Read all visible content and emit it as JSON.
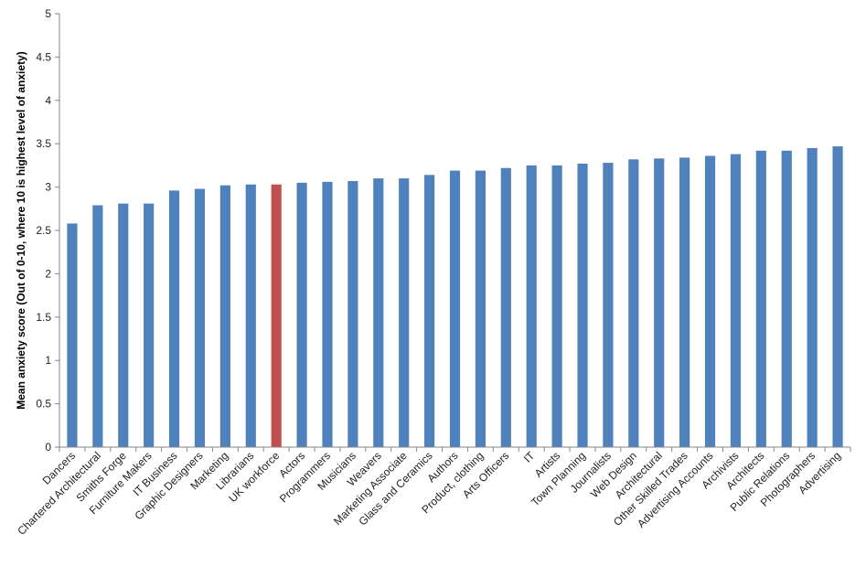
{
  "chart_data": {
    "type": "bar",
    "title": "",
    "xlabel": "",
    "ylabel": "Mean anxiety score  (Out of 0-10, where 10 is  highest level of anxiety)",
    "ylim": [
      0,
      5
    ],
    "yticks": [
      "0",
      "0.5",
      "1",
      "1.5",
      "2",
      "2.5",
      "3",
      "3.5",
      "4",
      "4.5",
      "5"
    ],
    "grid": false,
    "legend": "none",
    "bar_color": "#4f81bd",
    "highlight_color": "#c0504d",
    "highlight_category": "UK workforce",
    "categories": [
      "Dancers",
      "Chartered Architectural",
      "Smiths Forge",
      "Furniture Makers",
      "IT Business",
      "Graphic Designers",
      "Marketing",
      "Librarians",
      "UK workforce",
      "Actors",
      "Programmers",
      "Musicians",
      "Weavers",
      "Marketing Associate",
      "Glass and Ceramics",
      "Authors",
      "Product, clothing",
      "Arts Officers",
      "IT",
      "Artists",
      "Town Planning",
      "Journalists",
      "Web Design",
      "Architectural",
      "Other Skilled Trades",
      "Advertising Accounts",
      "Archivists",
      "Architects",
      "Public Relations",
      "Photographers",
      "Advertising"
    ],
    "values": [
      2.58,
      2.79,
      2.81,
      2.81,
      2.96,
      2.98,
      3.02,
      3.03,
      3.03,
      3.05,
      3.06,
      3.07,
      3.1,
      3.1,
      3.14,
      3.19,
      3.19,
      3.22,
      3.25,
      3.25,
      3.27,
      3.28,
      3.32,
      3.33,
      3.34,
      3.36,
      3.38,
      3.42,
      3.42,
      3.45,
      3.47
    ]
  }
}
